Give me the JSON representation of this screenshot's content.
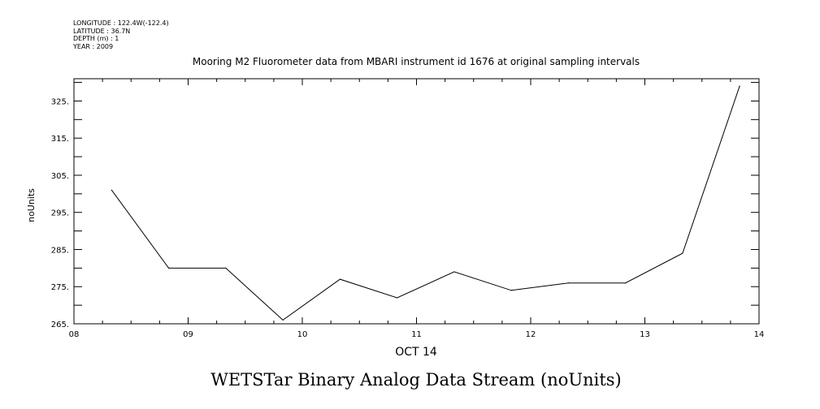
{
  "header": {
    "longitude": "LONGITUDE : 122.4W(-122.4)",
    "latitude": "LATITUDE : 36.7N",
    "depth": "DEPTH (m) : 1",
    "year": "YEAR : 2009"
  },
  "chart_data": {
    "type": "line",
    "title": "Mooring M2 Fluorometer data from MBARI instrument id 1676 at original sampling intervals",
    "xlabel": "OCT 14",
    "ylabel": "noUnits",
    "bottom_title": "WETSTar Binary Analog Data Stream (noUnits)",
    "xlim": [
      8,
      14
    ],
    "ylim": [
      265,
      331
    ],
    "x_tick_labels": [
      "08",
      "09",
      "10",
      "11",
      "12",
      "13",
      "14"
    ],
    "y_tick_labels": [
      "265.",
      "275.",
      "285.",
      "295.",
      "305.",
      "315.",
      "325."
    ],
    "grid": false,
    "series": [
      {
        "x": [
          8.33,
          8.83,
          9.33,
          9.83,
          10.33,
          10.83,
          11.33,
          11.83,
          12.33,
          12.83,
          13.33,
          13.83
        ],
        "values": [
          301,
          280,
          280,
          266,
          277,
          272,
          279,
          274,
          276,
          276,
          284,
          329
        ]
      }
    ]
  }
}
